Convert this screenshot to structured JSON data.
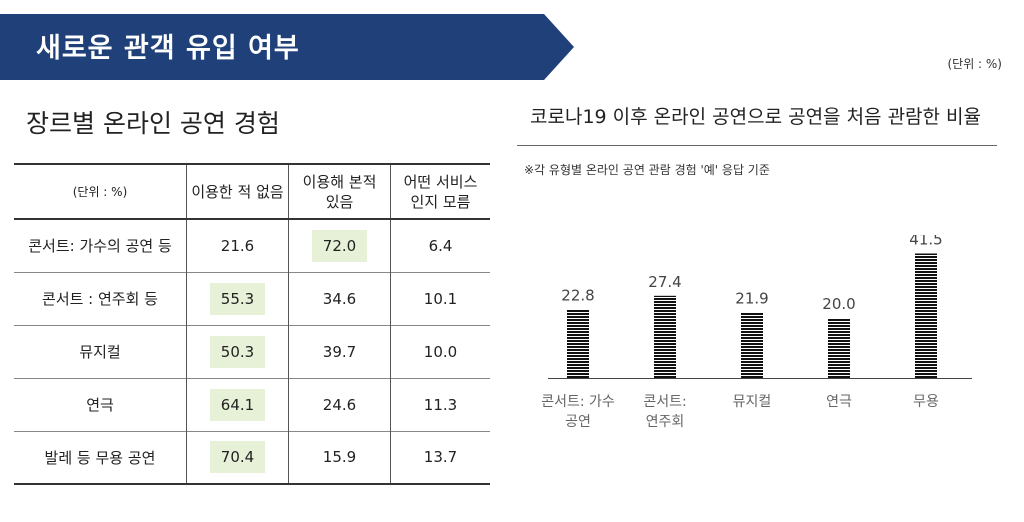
{
  "banner": {
    "title": "새로운 관객 유입 여부",
    "color": "#1f4079"
  },
  "unit_note": "(단위 : %)",
  "left": {
    "title": "장르별 온라인 공연 경험",
    "table": {
      "unit_label": "(단위 : %)",
      "headers": [
        "이용한 적 없음",
        "이용해 본적\n있음",
        "어떤 서비스\n인지 모름"
      ],
      "rows": [
        {
          "genre": "콘서트: 가수의 공연 등",
          "values": [
            "21.6",
            "72.0",
            "6.4"
          ]
        },
        {
          "genre": "콘서트 : 연주회 등",
          "values": [
            "55.3",
            "34.6",
            "10.1"
          ]
        },
        {
          "genre": "뮤지컬",
          "values": [
            "50.3",
            "39.7",
            "10.0"
          ]
        },
        {
          "genre": "연극",
          "values": [
            "64.1",
            "24.6",
            "11.3"
          ]
        },
        {
          "genre": "발레 등 무용 공연",
          "values": [
            "70.4",
            "15.9",
            "13.7"
          ]
        }
      ],
      "highlight_color": "#e6f1d8"
    }
  },
  "right": {
    "title": "코로나19 이후 온라인 공연으로 공연을 처음 관람한 비율",
    "note": "※각 유형별 온라인 공연 관람 경험 '예' 응답 기준"
  },
  "chart_data": {
    "type": "bar",
    "categories": [
      "콘서트: 가수\n공연",
      "콘서트:\n연주회",
      "뮤지컬",
      "연극",
      "무용"
    ],
    "values": [
      22.8,
      27.4,
      21.9,
      20.0,
      41.5
    ],
    "ylim": [
      0,
      45
    ],
    "grid": false,
    "bar_pattern": "horizontal-stripes",
    "bar_color": "#111111"
  }
}
